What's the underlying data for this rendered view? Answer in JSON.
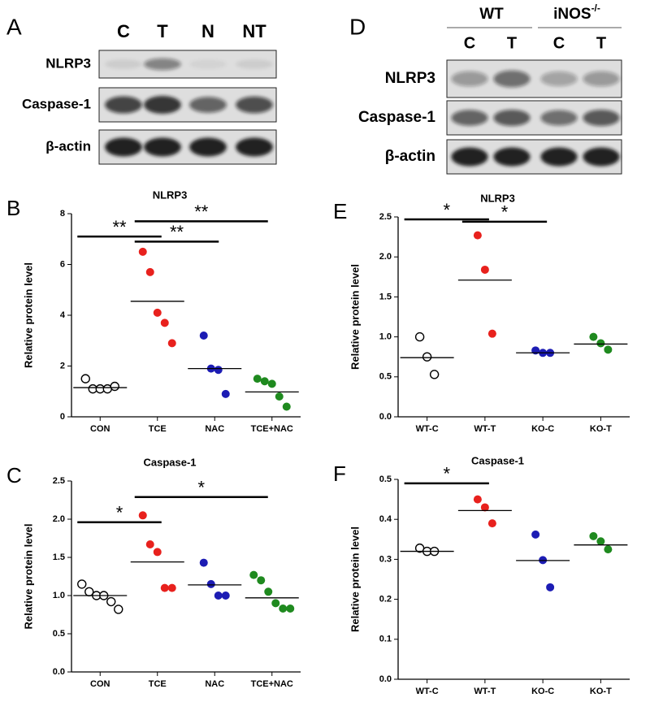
{
  "blots": {
    "left": {
      "panel": "A",
      "lanes": [
        "C",
        "T",
        "N",
        "NT"
      ],
      "rows": [
        "NLRP3",
        "Caspase-1",
        "β-actin"
      ]
    },
    "right": {
      "panel": "D",
      "groups": [
        "WT",
        "iNOS"
      ],
      "group_superscript": "-/-",
      "lanes": [
        "C",
        "T",
        "C",
        "T"
      ],
      "rows": [
        "NLRP3",
        "Caspase-1",
        "β-actin"
      ]
    }
  },
  "chart_data": [
    {
      "type": "strip",
      "panel": "B",
      "title": "NLRP3",
      "ylabel": "Relative protein level",
      "categories": [
        "CON",
        "TCE",
        "NAC",
        "TCE+NAC"
      ],
      "colors": [
        "#ffffff",
        "#e8211d",
        "#1c1cb4",
        "#1f8a1f"
      ],
      "points": [
        [
          1.5,
          1.1,
          1.1,
          1.1,
          1.2
        ],
        [
          6.5,
          5.7,
          4.1,
          3.7,
          2.9
        ],
        [
          3.2,
          1.9,
          1.85,
          0.9
        ],
        [
          1.5,
          1.4,
          1.3,
          0.8,
          0.4
        ]
      ],
      "means": [
        1.15,
        4.55,
        1.9,
        0.98
      ],
      "ylim": [
        0,
        8
      ],
      "yticks": [
        0,
        2,
        4,
        6,
        8
      ],
      "brackets": [
        {
          "from": 0,
          "to": 1,
          "y": 7.1,
          "label": "**"
        },
        {
          "from": 1,
          "to": 3,
          "y": 7.7,
          "label": "**"
        },
        {
          "from": 1,
          "to": 2,
          "y": 6.9,
          "label": "**"
        }
      ]
    },
    {
      "type": "strip",
      "panel": "C",
      "title": "Caspase-1",
      "ylabel": "Relative protein level",
      "categories": [
        "CON",
        "TCE",
        "NAC",
        "TCE+NAC"
      ],
      "colors": [
        "#ffffff",
        "#e8211d",
        "#1c1cb4",
        "#1f8a1f"
      ],
      "points": [
        [
          1.15,
          1.05,
          1.0,
          1.0,
          0.92,
          0.82
        ],
        [
          2.05,
          1.67,
          1.57,
          1.1,
          1.1
        ],
        [
          1.43,
          1.15,
          1.0,
          1.0
        ],
        [
          1.27,
          1.2,
          1.05,
          0.9,
          0.83,
          0.83
        ]
      ],
      "means": [
        1.0,
        1.44,
        1.14,
        0.97
      ],
      "ylim": [
        0,
        2.5
      ],
      "yticks": [
        {
          "value": 0,
          "label": "0.0"
        },
        0.5,
        {
          "value": 1,
          "label": "1.0"
        },
        1.5,
        {
          "value": 2,
          "label": "2.0"
        },
        2.5
      ],
      "brackets": [
        {
          "from": 0,
          "to": 1,
          "y": 1.96,
          "label": "*"
        },
        {
          "from": 1,
          "to": 3,
          "y": 2.29,
          "label": "*"
        }
      ]
    },
    {
      "type": "strip",
      "panel": "E",
      "title": "NLRP3",
      "ylabel": "Relative protein level",
      "categories": [
        "WT-C",
        "WT-T",
        "KO-C",
        "KO-T"
      ],
      "colors": [
        "#ffffff",
        "#e8211d",
        "#1c1cb4",
        "#1f8a1f"
      ],
      "points": [
        [
          1.0,
          0.75,
          0.53
        ],
        [
          2.27,
          1.84,
          1.04
        ],
        [
          0.83,
          0.8,
          0.8
        ],
        [
          1.0,
          0.92,
          0.84
        ]
      ],
      "means": [
        0.74,
        1.71,
        0.8,
        0.91
      ],
      "ylim": [
        0,
        2.5
      ],
      "yticks": [
        {
          "value": 0,
          "label": "0.0"
        },
        0.5,
        {
          "value": 1,
          "label": "1.0"
        },
        1.5,
        {
          "value": 2,
          "label": "2.0"
        },
        2.5
      ],
      "brackets": [
        {
          "from": 0,
          "to": 1,
          "y": 2.47,
          "label": "*"
        },
        {
          "from": 1,
          "to": 2,
          "y": 2.44,
          "label": "*"
        }
      ]
    },
    {
      "type": "strip",
      "panel": "F",
      "title": "Caspase-1",
      "ylabel": "Relative protein level",
      "categories": [
        "WT-C",
        "WT-T",
        "KO-C",
        "KO-T"
      ],
      "colors": [
        "#ffffff",
        "#e8211d",
        "#1c1cb4",
        "#1f8a1f"
      ],
      "points": [
        [
          0.328,
          0.32,
          0.32
        ],
        [
          0.45,
          0.43,
          0.39
        ],
        [
          0.362,
          0.298,
          0.23
        ],
        [
          0.358,
          0.345,
          0.325
        ]
      ],
      "means": [
        0.32,
        0.422,
        0.297,
        0.336
      ],
      "ylim": [
        0,
        0.5
      ],
      "yticks": [
        {
          "value": 0,
          "label": "0.0"
        },
        0.1,
        0.2,
        0.3,
        0.4,
        0.5
      ],
      "brackets": [
        {
          "from": 0,
          "to": 1,
          "y": 0.49,
          "label": "*"
        }
      ]
    }
  ]
}
